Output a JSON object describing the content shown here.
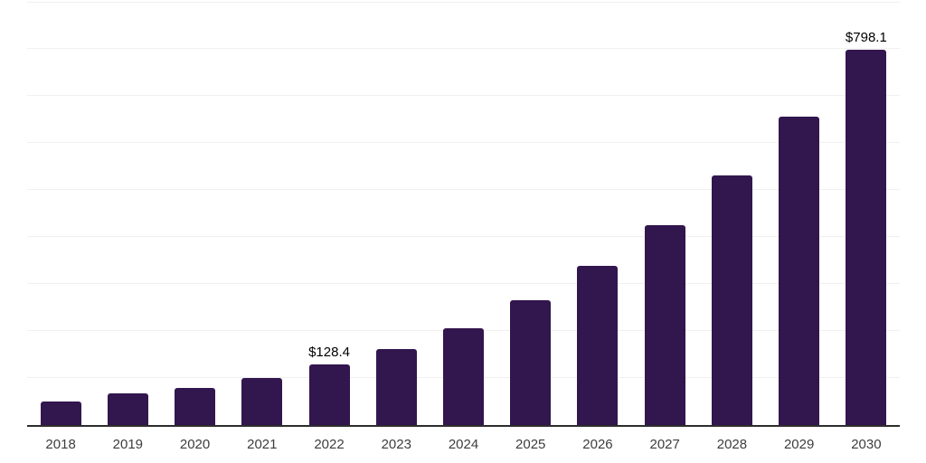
{
  "chart_data": {
    "type": "bar",
    "title": "",
    "xlabel": "",
    "ylabel": "",
    "categories": [
      "2018",
      "2019",
      "2020",
      "2021",
      "2022",
      "2023",
      "2024",
      "2025",
      "2026",
      "2027",
      "2028",
      "2029",
      "2030"
    ],
    "values": [
      50.0,
      67.3,
      79.9,
      100.1,
      128.4,
      161.6,
      206.9,
      266.5,
      338.8,
      425.3,
      531.2,
      656.3,
      798.1
    ],
    "data_labels": [
      {
        "index": 4,
        "text": "$128.4"
      },
      {
        "index": 12,
        "text": "$798.1"
      }
    ],
    "ylim": [
      0,
      900
    ],
    "gridline_step": 100,
    "grid": "horizontal",
    "legend": "none",
    "colors": {
      "bar": "#32164e",
      "axis_line": "#2d2d2d",
      "gridline": "#f0f0f0",
      "tick_label": "#3d3d3d",
      "data_label": "#000000",
      "background": "#ffffff"
    }
  }
}
